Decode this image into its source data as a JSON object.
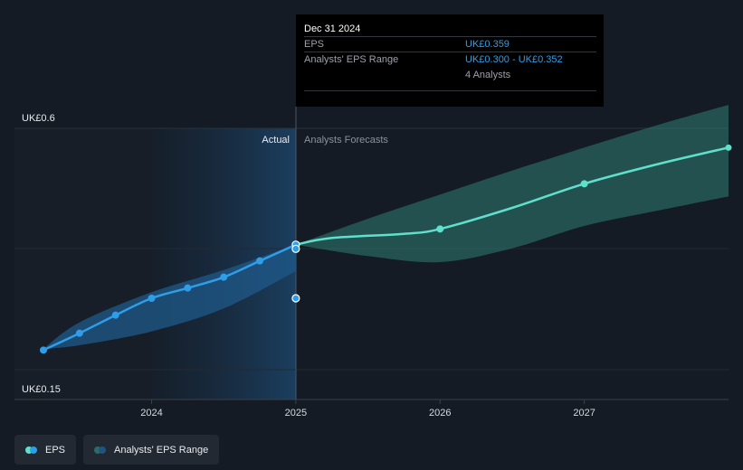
{
  "chart_data": {
    "type": "line",
    "y_tick_labels": [
      "UK£0.6",
      "UK£0.15"
    ],
    "ylim": [
      0.15,
      0.6
    ],
    "xlim": [
      2023.25,
      2028.0
    ],
    "x_ticks": [
      {
        "value": 2024,
        "label": "2024"
      },
      {
        "value": 2025,
        "label": "2025"
      },
      {
        "value": 2026,
        "label": "2026"
      },
      {
        "value": 2027,
        "label": "2027"
      }
    ],
    "region_labels": {
      "actual": "Actual",
      "forecast": "Analysts Forecasts"
    },
    "split_x": 2025,
    "series": [
      {
        "name": "EPS",
        "color": "#2f9ee8",
        "x": [
          2023.25,
          2023.5,
          2023.75,
          2024.0,
          2024.25,
          2024.5,
          2024.75,
          2025.0
        ],
        "y": [
          0.214,
          0.242,
          0.272,
          0.3,
          0.317,
          0.335,
          0.362,
          0.389
        ]
      },
      {
        "name": "EPS Forecast",
        "color": "#5ee0cb",
        "x": [
          2025.0,
          2025.25,
          2025.75,
          2026.0,
          2026.5,
          2027.0,
          2027.5,
          2028.0
        ],
        "y": [
          0.389,
          0.4,
          0.407,
          0.415,
          0.45,
          0.49,
          0.522,
          0.55
        ]
      }
    ],
    "actual_range": {
      "x": [
        2023.25,
        2023.5,
        2024.0,
        2024.5,
        2025.0
      ],
      "high": [
        0.216,
        0.26,
        0.31,
        0.347,
        0.389
      ],
      "low": [
        0.216,
        0.222,
        0.245,
        0.283,
        0.345
      ]
    },
    "forecast_range": {
      "x": [
        2025.0,
        2025.5,
        2026.0,
        2026.5,
        2027.0,
        2027.5,
        2028.0
      ],
      "high": [
        0.389,
        0.432,
        0.472,
        0.512,
        0.55,
        0.587,
        0.621
      ],
      "low": [
        0.389,
        0.37,
        0.36,
        0.383,
        0.42,
        0.445,
        0.469
      ]
    },
    "highlight_points": [
      {
        "x": 2025.0,
        "y": 0.389
      },
      {
        "x": 2025.0,
        "y": 0.382
      },
      {
        "x": 2025.0,
        "y": 0.3
      }
    ]
  },
  "tooltip": {
    "date": "Dec 31 2024",
    "eps_label": "EPS",
    "eps_value": "UK£0.359",
    "range_label": "Analysts' EPS Range",
    "range_value": "UK£0.300 - UK£0.352",
    "analysts": "4 Analysts"
  },
  "legend": [
    {
      "label": "EPS",
      "color_a": "#5ee0cb",
      "color_b": "#2f9ee8"
    },
    {
      "label": "Analysts' EPS Range",
      "color_a": "#2b6b6a",
      "color_b": "#1f5480"
    }
  ]
}
